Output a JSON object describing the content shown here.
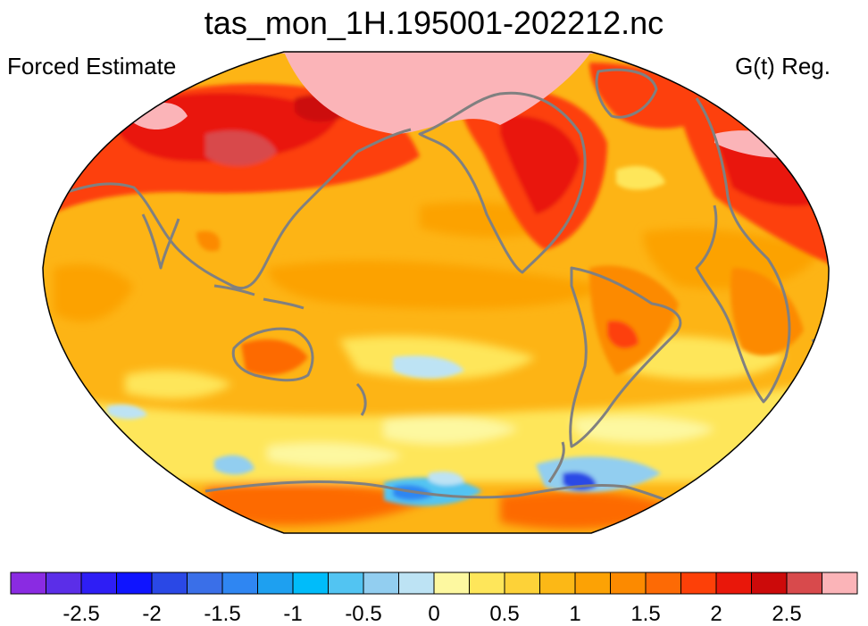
{
  "header": {
    "title": "tas_mon_1H.195001-202212.nc",
    "left_label": "Forced Estimate",
    "right_label": "G(t) Reg."
  },
  "colorbar": {
    "colors": [
      "#8a2be2",
      "#5b2ee8",
      "#2e1ef5",
      "#0f14ff",
      "#2a48e6",
      "#3a6fe8",
      "#2f86f2",
      "#1ea0f0",
      "#00bcfa",
      "#52c4f2",
      "#92cef0",
      "#bde3f4",
      "#fdf8a0",
      "#fee65a",
      "#fdd238",
      "#fcb816",
      "#fca205",
      "#fc8a00",
      "#fd6a05",
      "#fd4008",
      "#e9170a",
      "#cc0a0a",
      "#d84a4c",
      "#fbb4b8"
    ],
    "tick_values": [
      -2.5,
      -2,
      -1.5,
      -1,
      -0.5,
      0,
      0.5,
      1,
      1.5,
      2,
      2.5
    ],
    "tick_labels": [
      "-2.5",
      "-2",
      "-1.5",
      "-1",
      "-0.5",
      "0",
      "0.5",
      "1",
      "1.5",
      "2",
      "2.5"
    ],
    "min": -3,
    "max": 3
  },
  "map": {
    "projection": "robinson",
    "base_color": "#fdb415",
    "coastline_color": "#808080"
  }
}
